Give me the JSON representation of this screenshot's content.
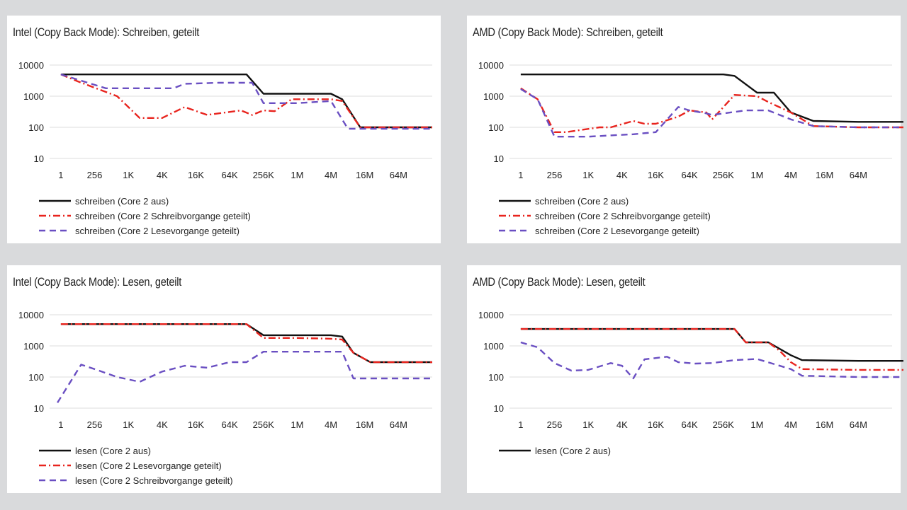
{
  "colors": {
    "black": "#111111",
    "red": "#e8241e",
    "purple": "#6a4fc2",
    "grid": "#dddddd",
    "background": "#d9dadc"
  },
  "chart_data": [
    {
      "type": "line",
      "title": "Intel (Copy Back Mode): Schreiben, geteilt",
      "y_scale": "log",
      "ylim": [
        10,
        10000
      ],
      "yticks": [
        "10000",
        "1000",
        "100",
        "10"
      ],
      "xtick_labels": [
        "1",
        "256",
        "1K",
        "4K",
        "16K",
        "64K",
        "256K",
        "1M",
        "4M",
        "16M",
        "64M"
      ],
      "x_unit": "log2 steps (0 = 1, 28 = 256M)",
      "series": [
        {
          "name": "schreiben (Core 2 aus)",
          "style": "solid",
          "color": "#111111",
          "points": [
            [
              0,
              5000
            ],
            [
              5,
              5000
            ],
            [
              10,
              5000
            ],
            [
              15,
              5000
            ],
            [
              16.5,
              5000
            ],
            [
              18,
              1200
            ],
            [
              21,
              1200
            ],
            [
              24,
              1200
            ],
            [
              25,
              800
            ],
            [
              26.6,
              100
            ],
            [
              30,
              100
            ],
            [
              33,
              100
            ]
          ]
        },
        {
          "name": "schreiben (Core 2 Schreibvorgange geteilt)",
          "style": "dashdot",
          "color": "#e8241e",
          "points": [
            [
              0,
              5000
            ],
            [
              1.5,
              3000
            ],
            [
              5,
              1000
            ],
            [
              7,
              200
            ],
            [
              9,
              200
            ],
            [
              11,
              450
            ],
            [
              13,
              250
            ],
            [
              16,
              350
            ],
            [
              17,
              250
            ],
            [
              18,
              350
            ],
            [
              19,
              330
            ],
            [
              20.5,
              800
            ],
            [
              24,
              800
            ],
            [
              25,
              700
            ],
            [
              26.6,
              100
            ],
            [
              33,
              100
            ]
          ]
        },
        {
          "name": "schreiben (Core 2 Lesevorgange geteilt)",
          "style": "dashed",
          "color": "#6a4fc2",
          "points": [
            [
              0,
              5000
            ],
            [
              2,
              3000
            ],
            [
              4,
              1800
            ],
            [
              7,
              1800
            ],
            [
              10,
              1800
            ],
            [
              11,
              2500
            ],
            [
              14,
              2700
            ],
            [
              17,
              2700
            ],
            [
              18,
              600
            ],
            [
              21,
              600
            ],
            [
              24,
              700
            ],
            [
              25.5,
              90
            ],
            [
              33,
              90
            ]
          ]
        }
      ]
    },
    {
      "type": "line",
      "title": "AMD (Copy Back Mode): Schreiben, geteilt",
      "y_scale": "log",
      "ylim": [
        10,
        10000
      ],
      "yticks": [
        "10000",
        "1000",
        "100",
        "10"
      ],
      "xtick_labels": [
        "1",
        "256",
        "1K",
        "4K",
        "16K",
        "64K",
        "256K",
        "1M",
        "4M",
        "16M",
        "64M"
      ],
      "x_unit": "log2 steps (0 = 1, 28 = 256M)",
      "series": [
        {
          "name": "schreiben (Core 2 aus)",
          "style": "solid",
          "color": "#111111",
          "points": [
            [
              0,
              5000
            ],
            [
              10,
              5000
            ],
            [
              18,
              5000
            ],
            [
              19,
              4500
            ],
            [
              21,
              1300
            ],
            [
              22.5,
              1300
            ],
            [
              24,
              300
            ],
            [
              26,
              160
            ],
            [
              30,
              150
            ],
            [
              34,
              150
            ]
          ]
        },
        {
          "name": "schreiben (Core 2 Schreibvorgange geteilt)",
          "style": "dashdot",
          "color": "#e8241e",
          "points": [
            [
              0,
              1800
            ],
            [
              1.5,
              800
            ],
            [
              3,
              70
            ],
            [
              4,
              70
            ],
            [
              7,
              100
            ],
            [
              8,
              100
            ],
            [
              10,
              160
            ],
            [
              11,
              130
            ],
            [
              12,
              130
            ],
            [
              14,
              220
            ],
            [
              15,
              350
            ],
            [
              16.5,
              300
            ],
            [
              17,
              180
            ],
            [
              19,
              1100
            ],
            [
              21,
              1000
            ],
            [
              22,
              650
            ],
            [
              24,
              300
            ],
            [
              26,
              110
            ],
            [
              30,
              100
            ],
            [
              34,
              100
            ]
          ]
        },
        {
          "name": "schreiben (Core 2 Lesevorgange geteilt)",
          "style": "dashed",
          "color": "#6a4fc2",
          "points": [
            [
              0,
              1700
            ],
            [
              1.5,
              800
            ],
            [
              3,
              50
            ],
            [
              6,
              50
            ],
            [
              8,
              55
            ],
            [
              10,
              60
            ],
            [
              12,
              70
            ],
            [
              14,
              450
            ],
            [
              15,
              350
            ],
            [
              16.5,
              280
            ],
            [
              17,
              250
            ],
            [
              20,
              350
            ],
            [
              22,
              350
            ],
            [
              24,
              180
            ],
            [
              26,
              110
            ],
            [
              30,
              100
            ],
            [
              34,
              100
            ]
          ]
        }
      ]
    },
    {
      "type": "line",
      "title": "Intel (Copy Back Mode): Lesen, geteilt",
      "y_scale": "log",
      "ylim": [
        10,
        10000
      ],
      "yticks": [
        "10000",
        "1000",
        "100",
        "10"
      ],
      "xtick_labels": [
        "1",
        "256",
        "1K",
        "4K",
        "16K",
        "64K",
        "256K",
        "1M",
        "4M",
        "16M",
        "64M"
      ],
      "x_unit": "log2 steps (0 = 1, 28 = 256M)",
      "series": [
        {
          "name": "lesen (Core 2 aus)",
          "style": "solid",
          "color": "#111111",
          "points": [
            [
              0,
              5000
            ],
            [
              5,
              5000
            ],
            [
              10,
              5000
            ],
            [
              16.5,
              5000
            ],
            [
              18,
              2200
            ],
            [
              21,
              2200
            ],
            [
              24,
              2200
            ],
            [
              25,
              2000
            ],
            [
              26,
              600
            ],
            [
              27.5,
              300
            ],
            [
              31,
              300
            ],
            [
              33,
              300
            ]
          ]
        },
        {
          "name": "lesen (Core 2 Lesevorgange geteilt)",
          "style": "dashdot",
          "color": "#e8241e",
          "points": [
            [
              0,
              5000
            ],
            [
              5,
              5000
            ],
            [
              10,
              5000
            ],
            [
              16.5,
              5000
            ],
            [
              18,
              1800
            ],
            [
              21,
              1800
            ],
            [
              24,
              1700
            ],
            [
              25,
              1600
            ],
            [
              26,
              600
            ],
            [
              27.5,
              300
            ],
            [
              31,
              300
            ],
            [
              33,
              300
            ]
          ]
        },
        {
          "name": "lesen (Core 2 Schreibvorgange geteilt)",
          "style": "dashed",
          "color": "#6a4fc2",
          "points": [
            [
              -0.3,
              15
            ],
            [
              1.8,
              250
            ],
            [
              3,
              180
            ],
            [
              5,
              100
            ],
            [
              7,
              70
            ],
            [
              9,
              150
            ],
            [
              11,
              230
            ],
            [
              13,
              200
            ],
            [
              15,
              300
            ],
            [
              16.5,
              300
            ],
            [
              18,
              650
            ],
            [
              21,
              650
            ],
            [
              24,
              650
            ],
            [
              25,
              650
            ],
            [
              26,
              90
            ],
            [
              30,
              90
            ],
            [
              33,
              90
            ]
          ]
        }
      ]
    },
    {
      "type": "line",
      "title": "AMD (Copy Back Mode): Lesen, geteilt",
      "y_scale": "log",
      "ylim": [
        10,
        10000
      ],
      "yticks": [
        "10000",
        "1000",
        "100",
        "10"
      ],
      "xtick_labels": [
        "1",
        "256",
        "1K",
        "4K",
        "16K",
        "64K",
        "256K",
        "1M",
        "4M",
        "16M",
        "64M"
      ],
      "x_unit": "log2 steps (0 = 1, 28 = 256M)",
      "series": [
        {
          "name": "lesen (Core 2 aus)",
          "style": "solid",
          "color": "#111111",
          "points": [
            [
              0,
              3500
            ],
            [
              10,
              3500
            ],
            [
              19,
              3500
            ],
            [
              20,
              1300
            ],
            [
              22,
              1300
            ],
            [
              24,
              500
            ],
            [
              25,
              350
            ],
            [
              30,
              330
            ],
            [
              34,
              330
            ]
          ]
        },
        {
          "name": "",
          "style": "dashdot",
          "color": "#e8241e",
          "points": [
            [
              0,
              3500
            ],
            [
              10,
              3500
            ],
            [
              19,
              3500
            ],
            [
              20,
              1300
            ],
            [
              22,
              1300
            ],
            [
              23,
              700
            ],
            [
              24,
              300
            ],
            [
              25,
              180
            ],
            [
              30,
              170
            ],
            [
              34,
              170
            ]
          ]
        },
        {
          "name": "",
          "style": "dashed",
          "color": "#6a4fc2",
          "points": [
            [
              0,
              1300
            ],
            [
              1.5,
              900
            ],
            [
              3,
              280
            ],
            [
              4.5,
              160
            ],
            [
              6,
              170
            ],
            [
              8,
              280
            ],
            [
              9,
              230
            ],
            [
              10,
              90
            ],
            [
              11,
              370
            ],
            [
              13,
              450
            ],
            [
              14,
              300
            ],
            [
              15.5,
              270
            ],
            [
              17,
              280
            ],
            [
              19,
              350
            ],
            [
              21,
              380
            ],
            [
              24,
              180
            ],
            [
              25,
              110
            ],
            [
              30,
              100
            ],
            [
              34,
              100
            ]
          ]
        }
      ]
    }
  ]
}
